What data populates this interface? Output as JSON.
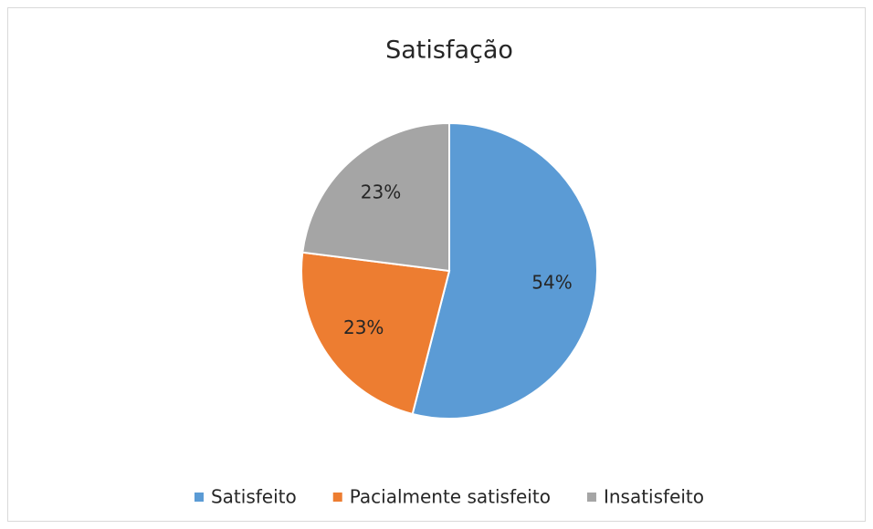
{
  "chart_data": {
    "type": "pie",
    "title": "Satisfação",
    "categories": [
      "Satisfeito",
      "Pacialmente satisfeito",
      "Insatisfeito"
    ],
    "values": [
      54,
      23,
      23
    ],
    "value_labels": [
      "54%",
      "23%",
      "23%"
    ],
    "colors": [
      "#5b9bd5",
      "#ed7d31",
      "#a5a5a5"
    ],
    "legend": "bottom"
  }
}
